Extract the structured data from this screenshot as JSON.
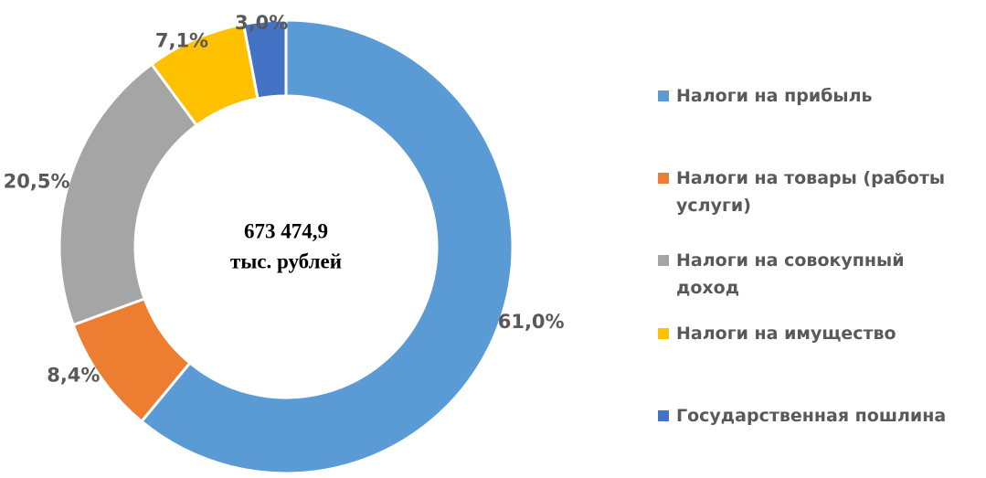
{
  "chart_data": {
    "type": "donut",
    "categories": [
      "Налоги на прибыль",
      "Налоги на товары (работы услуги)",
      "Налоги на совокупный доход",
      "Налоги на имущество",
      "Государственная пошлина"
    ],
    "values": [
      61.0,
      8.4,
      20.5,
      7.1,
      3.0
    ],
    "value_labels": [
      "61,0%",
      "8,4%",
      "20,5%",
      "7,1%",
      "3,0%"
    ],
    "colors": [
      "#5b9bd5",
      "#ed7d31",
      "#a5a5a5",
      "#ffc000",
      "#4472c4"
    ],
    "center_text": [
      "673 474,9",
      "тыс. рублей"
    ],
    "legend": "right"
  }
}
